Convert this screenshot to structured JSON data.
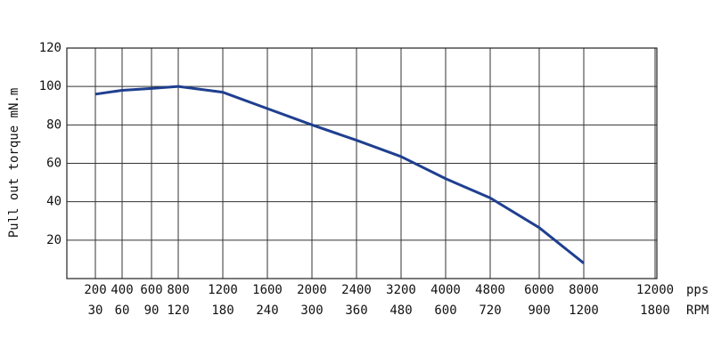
{
  "chart_data": {
    "type": "line",
    "y_label": "Pull out torque mN.m",
    "categories": [
      "200",
      "400",
      "600",
      "800",
      "1200",
      "1600",
      "2000",
      "2400",
      "3200",
      "4000",
      "4800",
      "6000",
      "8000",
      "12000"
    ],
    "x_unit": "pps",
    "secondary_categories": [
      "30",
      "60",
      "90",
      "120",
      "180",
      "240",
      "300",
      "360",
      "480",
      "600",
      "720",
      "900",
      "1200",
      "1800"
    ],
    "secondary_unit": "RPM",
    "series": [
      {
        "name": "Pull out torque",
        "color": "#1f3f8f",
        "values": [
          96,
          98,
          99,
          100,
          97,
          88.5,
          80,
          72,
          63.5,
          52,
          42,
          26.5,
          8,
          null
        ]
      }
    ],
    "ylim": [
      0,
      120
    ],
    "yticks": [
      20,
      40,
      60,
      80,
      100,
      120
    ],
    "grid": true
  }
}
